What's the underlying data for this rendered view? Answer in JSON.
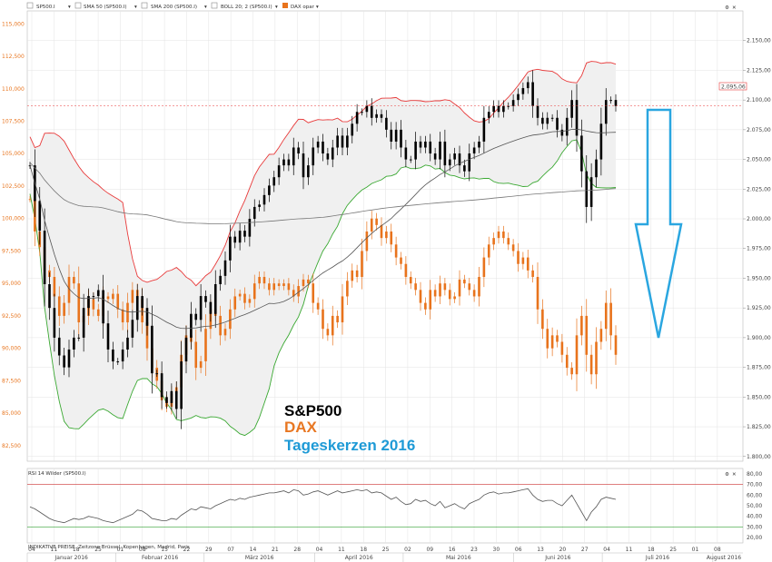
{
  "colors": {
    "bg": "#ffffff",
    "grid": "#e3e3e3",
    "spx_candle": "#000000",
    "dax_candle": "#e8731c",
    "boll_upper": "#e83a3a",
    "boll_lower": "#3aa832",
    "boll_fill": "#f0f0f0",
    "sma50": "#555555",
    "sma200": "#777777",
    "arrow": "#2aa6e0",
    "rsi_line": "#555555",
    "rsi_70": "#cc3333",
    "rsi_30": "#33a133",
    "title_spx": "#000000",
    "title_dax": "#e87722",
    "title_text": "#1e9ad6"
  },
  "toolbar": {
    "items": [
      "SP500.I",
      "SMA 50 (SP500.I)",
      "SMA 200 (SP500.I)",
      "BOLL 20; 2 (SP500.I)",
      "DAX opar"
    ]
  },
  "annotation": {
    "line1": "S&P500",
    "line2": "DAX",
    "line3": "Tageskerzen 2016"
  },
  "price_tags": {
    "spx_last": "2.095,06"
  },
  "rsi_panel": {
    "label": "RSI 14 Wilder (SP500.I)",
    "y_ticks": [
      "80,00",
      "70,00",
      "60,00",
      "50,00",
      "40,00",
      "30,00",
      "20,00"
    ],
    "ref_high": "70,00",
    "ref_low": "30,00"
  },
  "footer": {
    "source": "INDIKATIVE PREISE. Zeitzone Brüssel, Kopenhagen, Madrid, Paris"
  },
  "chart_data": [
    {
      "type": "candlestick",
      "title": "S&P500",
      "series": [
        {
          "name": "S&P500",
          "axis": "right"
        },
        {
          "name": "DAX",
          "axis": "left"
        }
      ],
      "right_axis_ticks": [
        "2.150,00",
        "2.125,00",
        "2.100,00",
        "2.075,00",
        "2.050,00",
        "2.025,00",
        "2.000,00",
        "1.975,00",
        "1.950,00",
        "1.925,00",
        "1.900,00",
        "1.875,00",
        "1.850,00",
        "1.825,00",
        "1.800,00"
      ],
      "right_ylim": [
        1796,
        2175
      ],
      "left_axis_ticks": [
        "115,000",
        "112,500",
        "110,000",
        "107,500",
        "105,000",
        "102,500",
        "100,000",
        "97,500",
        "95,000",
        "92,500",
        "90,000",
        "87,500",
        "85,000",
        "82,500"
      ],
      "left_ylim": [
        81.3,
        116.0
      ],
      "x_day_ticks": [
        "04",
        "11",
        "18",
        "25",
        "01",
        "08",
        "15",
        "22",
        "29",
        "07",
        "14",
        "21",
        "28",
        "04",
        "11",
        "18",
        "25",
        "02",
        "09",
        "16",
        "23",
        "30",
        "06",
        "13",
        "20",
        "27",
        "04",
        "11",
        "18",
        "25",
        "01",
        "08"
      ],
      "months": [
        {
          "label": "Januar 2016"
        },
        {
          "label": "Februar 2016"
        },
        {
          "label": "März 2016"
        },
        {
          "label": "April 2016"
        },
        {
          "label": "Mai 2016"
        },
        {
          "label": "Juni 2016"
        },
        {
          "label": "Juli 2016"
        },
        {
          "label": "August 2016"
        }
      ],
      "spx_close": [
        2045,
        2015,
        1990,
        1945,
        1925,
        1900,
        1885,
        1875,
        1890,
        1900,
        1900,
        1925,
        1935,
        1935,
        1940,
        1912,
        1890,
        1880,
        1880,
        1890,
        1900,
        1915,
        1935,
        1925,
        1910,
        1870,
        1870,
        1850,
        1845,
        1855,
        1840,
        1880,
        1900,
        1920,
        1915,
        1935,
        1930,
        1920,
        1945,
        1952,
        1965,
        1985,
        1980,
        1990,
        1985,
        2000,
        2010,
        2012,
        2020,
        2028,
        2035,
        2045,
        2050,
        2045,
        2060,
        2055,
        2035,
        2045,
        2060,
        2065,
        2055,
        2050,
        2060,
        2070,
        2060,
        2070,
        2080,
        2090,
        2090,
        2095,
        2085,
        2088,
        2085,
        2075,
        2065,
        2075,
        2060,
        2050,
        2050,
        2065,
        2060,
        2065,
        2055,
        2050,
        2065,
        2045,
        2050,
        2055,
        2045,
        2040,
        2055,
        2060,
        2065,
        2085,
        2090,
        2095,
        2090,
        2095,
        2095,
        2100,
        2105,
        2110,
        2115,
        2095,
        2085,
        2080,
        2085,
        2085,
        2075,
        2070,
        2085,
        2100,
        2070,
        2040,
        2010,
        2035,
        2050,
        2080,
        2100,
        2100,
        2095
      ],
      "dax_close": [
        101.5,
        99.0,
        97.8,
        96.0,
        95.5,
        94.0,
        92.5,
        93.5,
        95.5,
        95.0,
        92.0,
        92.5,
        93.8,
        93.0,
        92.5,
        94.0,
        93.8,
        94.2,
        93.0,
        92.0,
        93.5,
        94.5,
        93.8,
        92.0,
        90.0,
        88.5,
        87.5,
        86.0,
        85.5,
        86.5,
        87.0,
        89.5,
        91.0,
        90.5,
        88.5,
        89.0,
        91.5,
        93.0,
        92.5,
        91.0,
        91.5,
        93.0,
        94.0,
        94.2,
        93.5,
        93.8,
        95.0,
        95.5,
        95.0,
        94.5,
        95.0,
        94.8,
        95.0,
        94.5,
        94.0,
        94.8,
        95.3,
        95.0,
        93.5,
        93.0,
        91.5,
        91.0,
        92.5,
        92.0,
        94.0,
        95.2,
        96.0,
        95.5,
        97.5,
        99.0,
        100.0,
        99.5,
        98.5,
        99.0,
        98.0,
        97.0,
        96.5,
        95.5,
        95.0,
        94.5,
        93.5,
        93.0,
        94.5,
        94.0,
        95.0,
        94.5,
        93.8,
        94.0,
        95.3,
        95.0,
        94.5,
        94.0,
        95.5,
        97.0,
        98.0,
        98.5,
        99.0,
        98.5,
        98.0,
        97.5,
        96.5,
        97.0,
        96.0,
        95.5,
        93.0,
        91.5,
        90.0,
        91.0,
        90.5,
        89.5,
        88.5,
        88.0,
        91.0,
        92.5,
        89.5,
        88.0,
        90.5,
        91.5,
        93.5,
        91.0,
        89.5
      ]
    },
    {
      "type": "line",
      "title": "RSI 14 Wilder (SP500.I)",
      "series": [
        {
          "name": "RSI 14 Wilder (SP500.I)"
        }
      ],
      "ylim": [
        15,
        85
      ],
      "values": [
        49,
        47,
        44,
        41,
        38,
        36,
        35,
        34,
        36,
        38,
        37,
        38,
        40,
        39,
        38,
        36,
        35,
        34,
        36,
        38,
        40,
        42,
        46,
        45,
        42,
        38,
        37,
        36,
        36,
        38,
        37,
        41,
        44,
        47,
        46,
        49,
        48,
        47,
        50,
        52,
        54,
        56,
        55,
        57,
        56,
        58,
        59,
        60,
        61,
        62,
        62,
        63,
        64,
        62,
        65,
        64,
        60,
        61,
        63,
        64,
        62,
        60,
        62,
        64,
        62,
        63,
        64,
        65,
        64,
        65,
        62,
        63,
        62,
        59,
        56,
        58,
        54,
        51,
        52,
        56,
        54,
        55,
        52,
        50,
        54,
        48,
        50,
        52,
        49,
        47,
        52,
        54,
        56,
        60,
        62,
        63,
        61,
        62,
        62,
        63,
        64,
        65,
        66,
        60,
        56,
        54,
        55,
        55,
        52,
        50,
        55,
        60,
        52,
        44,
        36,
        44,
        49,
        56,
        58,
        57,
        56
      ]
    }
  ]
}
